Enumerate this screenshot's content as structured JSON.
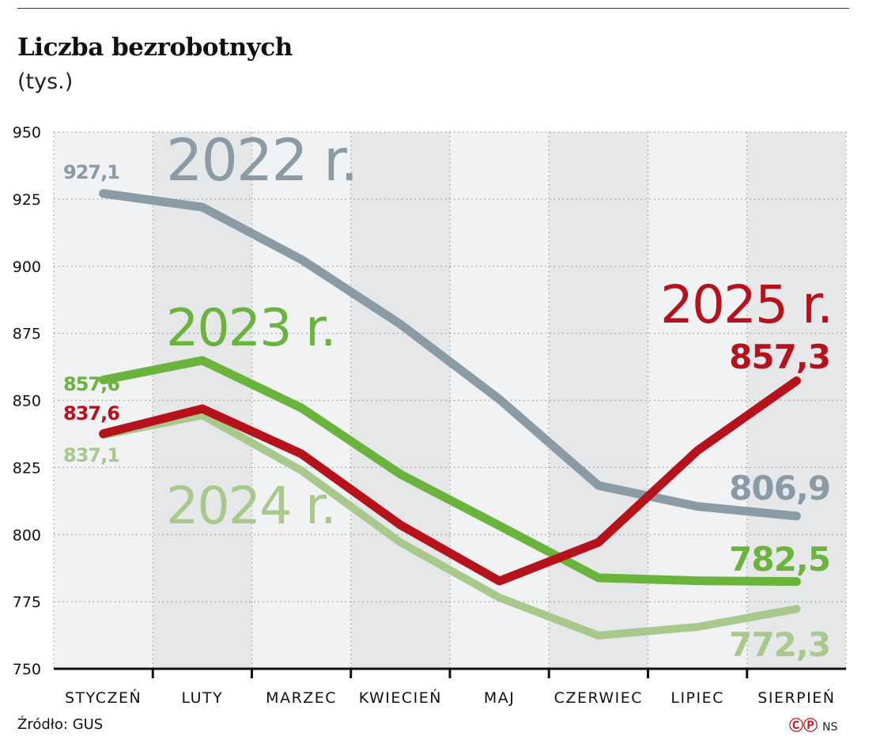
{
  "title": "Liczba bezrobotnych",
  "subtitle": "(tys.)",
  "source": "Źródło: GUS",
  "credit": {
    "symbols": "ⒸⓅ",
    "author": "NS"
  },
  "chart_data": {
    "type": "line",
    "title": "Liczba bezrobotnych",
    "ylabel": "(tys.)",
    "categories": [
      "STYCZEŃ",
      "LUTY",
      "MARZEC",
      "KWIECIEŃ",
      "MAJ",
      "CZERWIEC",
      "LIPIEC",
      "SIERPIEŃ"
    ],
    "ylim": [
      750,
      950
    ],
    "yticks": [
      950,
      925,
      900,
      875,
      850,
      825,
      800,
      775,
      750
    ],
    "grid": true,
    "series": [
      {
        "name": "2022 r.",
        "color": "#8a9ba6",
        "values": [
          927.1,
          922.0,
          902.5,
          878.4,
          850.4,
          818.3,
          810.5,
          806.9
        ],
        "start_label": "927,1",
        "end_label": "806,9"
      },
      {
        "name": "2024 r.",
        "color": "#a8c98b",
        "values": [
          837.1,
          844.5,
          823.9,
          797.1,
          776.5,
          762.4,
          765.6,
          772.3
        ],
        "start_label": "837,1",
        "end_label": "772,3"
      },
      {
        "name": "2023 r.",
        "color": "#6ab43e",
        "values": [
          857.6,
          864.9,
          847.2,
          822.5,
          803.3,
          783.9,
          782.8,
          782.5
        ],
        "start_label": "857,6",
        "end_label": "782,5"
      },
      {
        "name": "2025 r.",
        "color": "#b5121b",
        "values": [
          837.6,
          846.9,
          830.1,
          803.6,
          782.7,
          797.1,
          831.3,
          857.3
        ],
        "start_label": "837,6",
        "end_label": "857,3"
      }
    ]
  }
}
